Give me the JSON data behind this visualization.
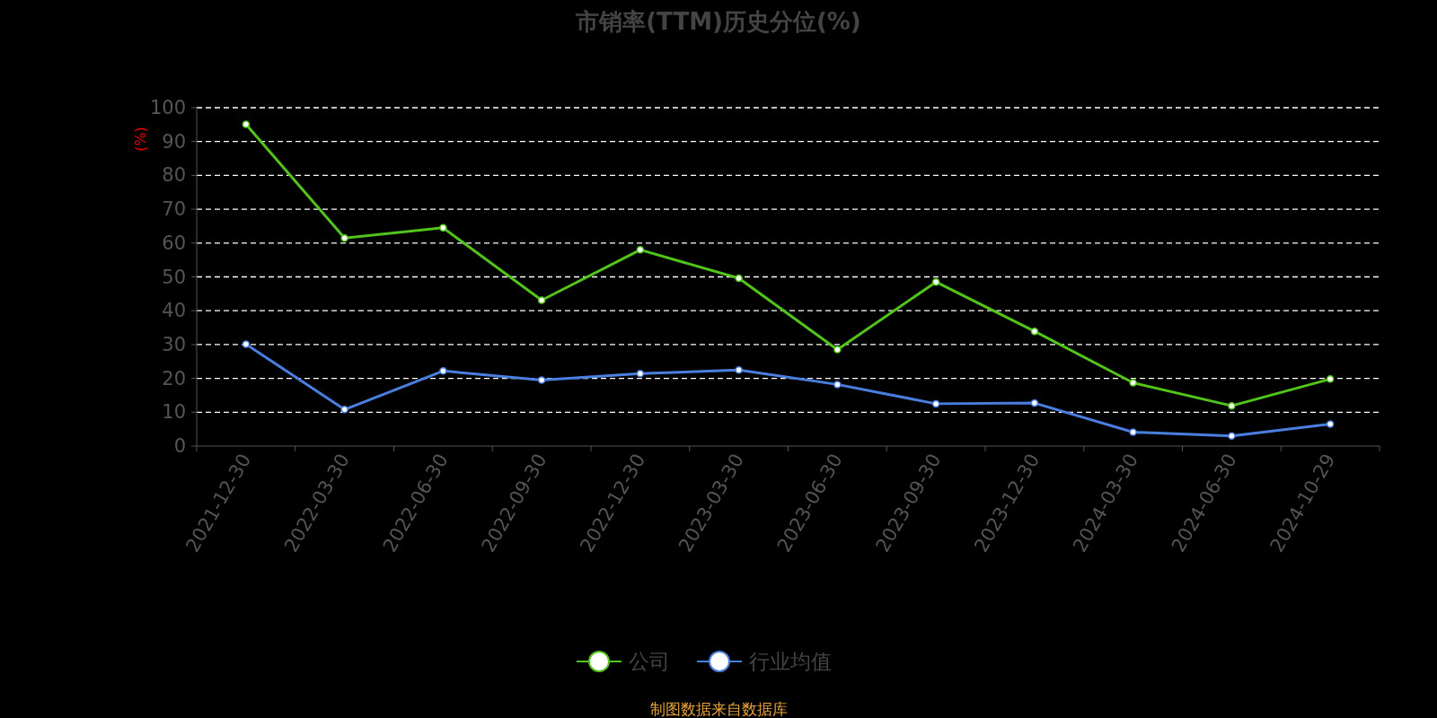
{
  "chart_data": {
    "type": "line",
    "title": "市销率(TTM)历史分位(%)",
    "ylabel": "(%)",
    "categories": [
      "2021-12-30",
      "2022-03-30",
      "2022-06-30",
      "2022-09-30",
      "2022-12-30",
      "2023-03-30",
      "2023-06-30",
      "2023-09-30",
      "2023-12-30",
      "2024-03-30",
      "2024-06-30",
      "2024-10-29"
    ],
    "series": [
      {
        "name": "公司",
        "color": "#52c41a",
        "values": [
          95.1,
          61.5,
          64.5,
          43.1,
          58.0,
          49.6,
          28.5,
          48.5,
          33.9,
          18.7,
          11.9,
          19.8
        ]
      },
      {
        "name": "行业均值",
        "color": "#4a7fe0",
        "values": [
          30.1,
          10.8,
          22.2,
          19.5,
          21.4,
          22.5,
          18.2,
          12.5,
          12.7,
          4.1,
          3.0,
          6.5
        ]
      }
    ],
    "ylim": [
      0,
      100
    ],
    "yticks": [
      0,
      10,
      20,
      30,
      40,
      50,
      60,
      70,
      80,
      90,
      100
    ],
    "grid": "y",
    "legend": "bottom",
    "marker": "circle",
    "line_style": "solid",
    "annotations": [
      "制图数据来自数据库"
    ]
  }
}
